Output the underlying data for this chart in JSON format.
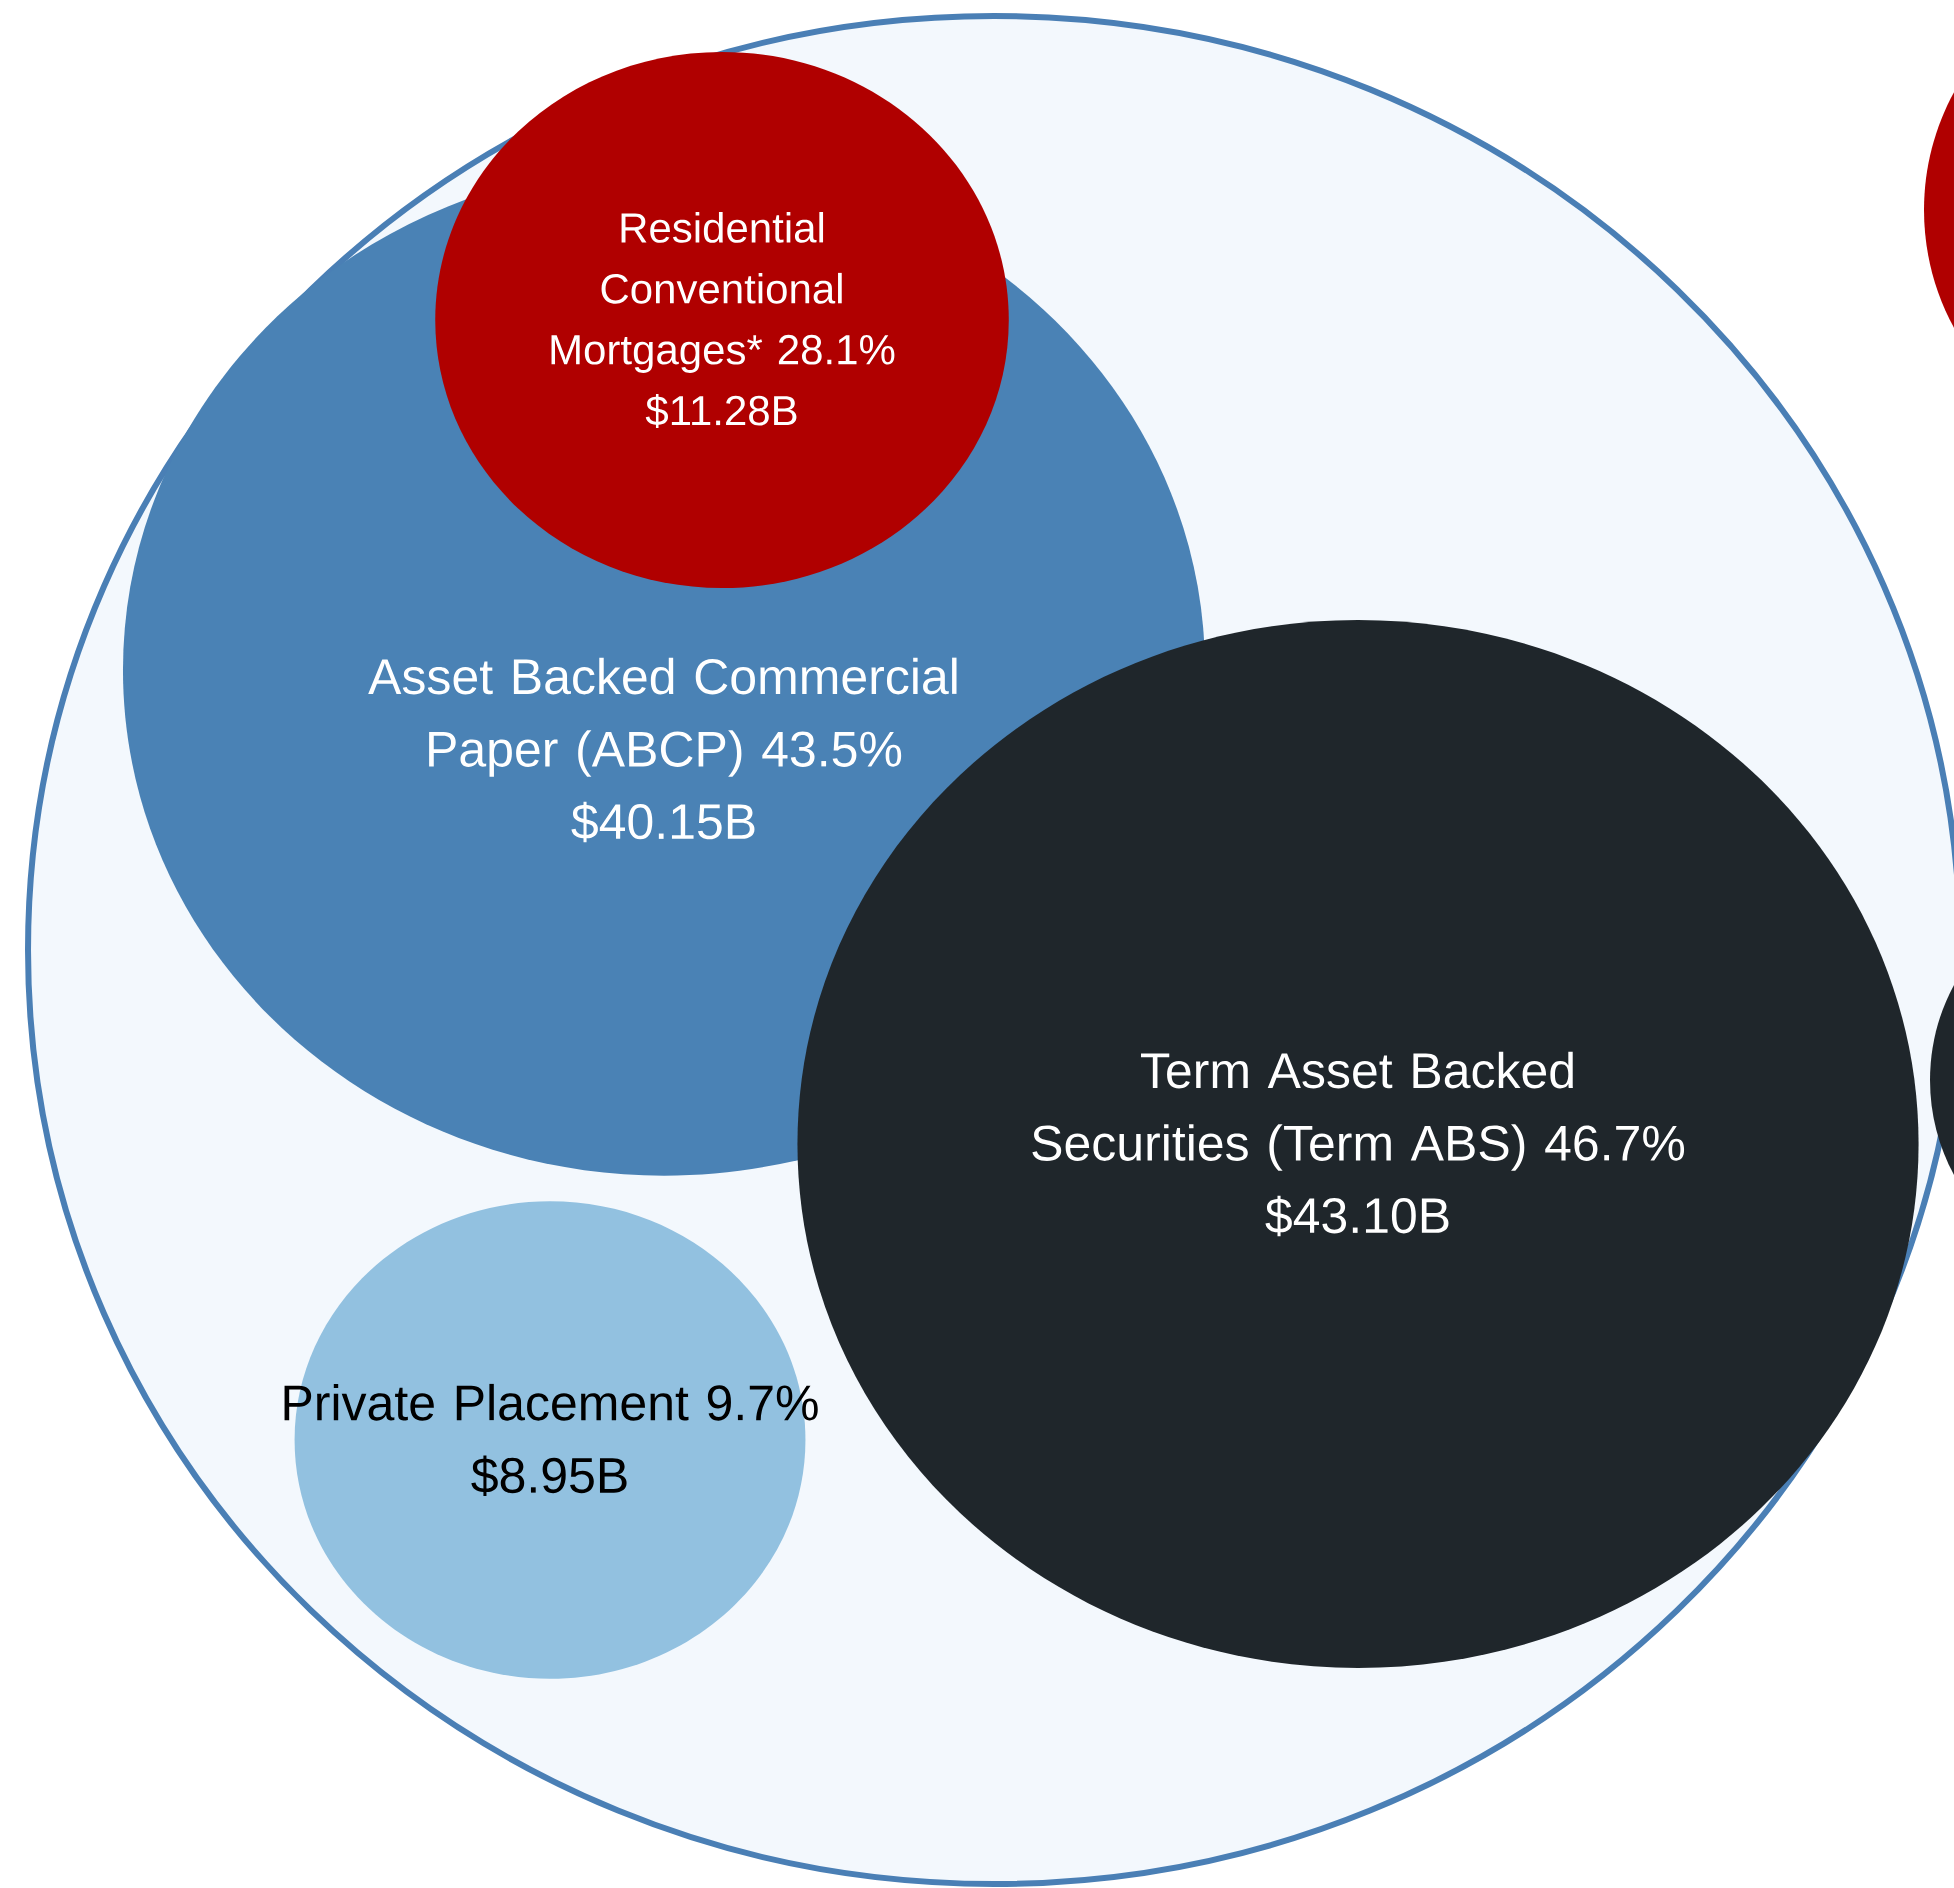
{
  "chart_data": {
    "type": "other",
    "categories": [
      "Asset Backed Commercial Paper (ABCP) 43.5%",
      "Residential Conventional Mortgages* 28.1%",
      "Term Asset Backed Securities (Term ABS) 46.7%",
      "Private Placement 9.7%"
    ],
    "values": [
      40.15,
      11.28,
      43.1,
      8.95
    ],
    "value_labels": [
      "$40.15B",
      "$11.28B",
      "$43.10B",
      "$8.95B"
    ],
    "colors": [
      "#4a82b5",
      "#b00000",
      "#1f262b",
      "#92c1e0"
    ]
  }
}
